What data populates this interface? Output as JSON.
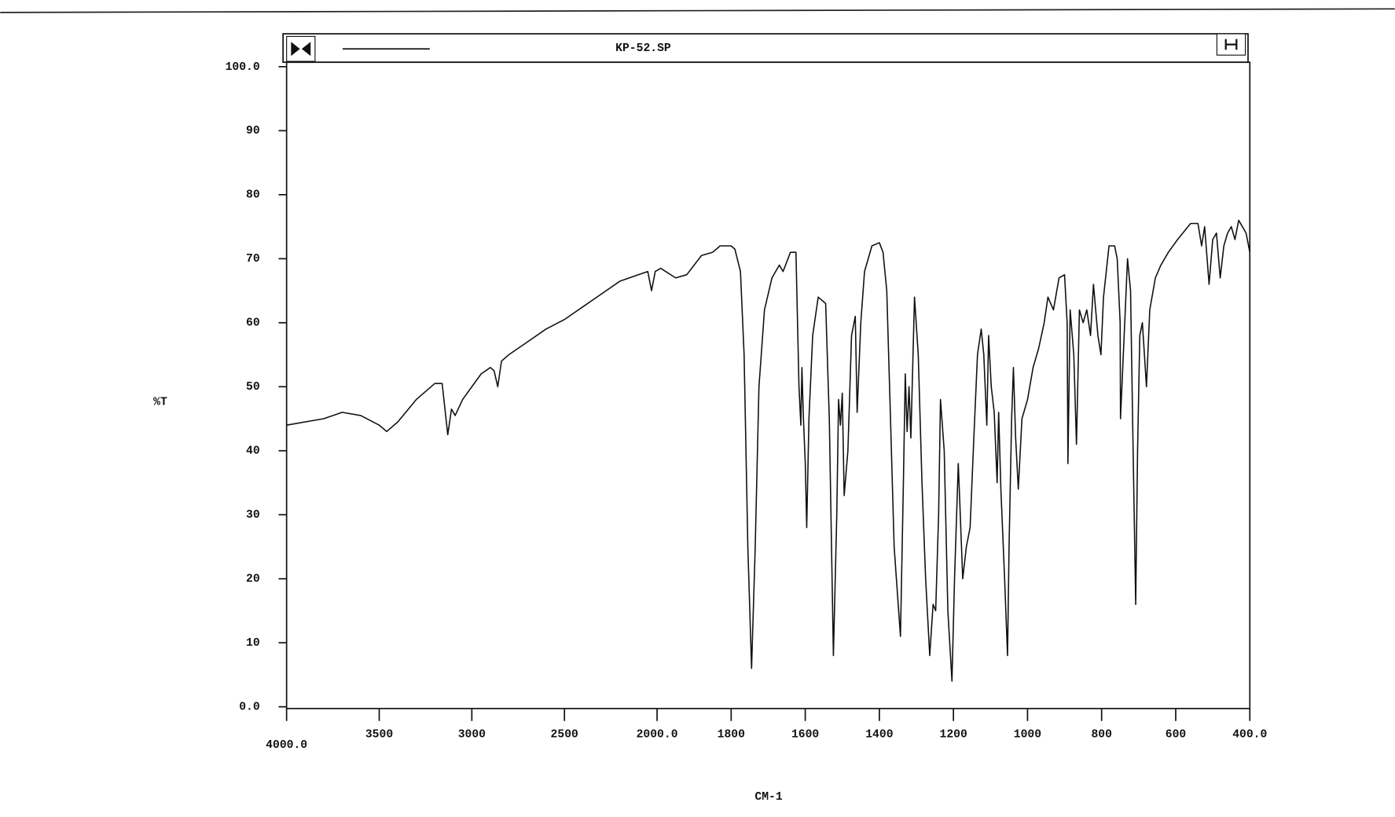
{
  "chart_data": {
    "type": "line",
    "title": "KP-52.SP",
    "xlabel": "CM-1",
    "ylabel": "%T",
    "xlim": [
      4000,
      400
    ],
    "x_scale_change": {
      "at": 2000,
      "factor": 2
    },
    "xticks": [
      {
        "value": 4000,
        "label": "4000.0"
      },
      3500,
      3000,
      2500,
      {
        "value": 2000,
        "label": "2000.0"
      },
      1800,
      1600,
      1400,
      1200,
      1000,
      800,
      600,
      {
        "value": 400,
        "label": "400.0"
      }
    ],
    "ylim": [
      0,
      100
    ],
    "yticks": [
      {
        "value": 0,
        "label": "0.0"
      },
      10,
      20,
      30,
      40,
      50,
      60,
      70,
      80,
      90,
      {
        "value": 100,
        "label": "100.0"
      }
    ],
    "series": [
      {
        "color": "#111111",
        "x": [
          4000,
          3800,
          3700,
          3600,
          3500,
          3460,
          3400,
          3300,
          3200,
          3160,
          3130,
          3110,
          3090,
          3050,
          3000,
          2950,
          2900,
          2880,
          2860,
          2840,
          2800,
          2700,
          2600,
          2500,
          2400,
          2300,
          2200,
          2100,
          2050,
          2030,
          2010,
          1990,
          1950,
          1920,
          1900,
          1880,
          1850,
          1830,
          1800,
          1790,
          1775,
          1765,
          1755,
          1745,
          1735,
          1725,
          1710,
          1690,
          1670,
          1660,
          1640,
          1625,
          1617,
          1612,
          1609,
          1605,
          1600,
          1596,
          1590,
          1580,
          1565,
          1545,
          1535,
          1524,
          1515,
          1510,
          1505,
          1500,
          1495,
          1485,
          1475,
          1465,
          1460,
          1450,
          1440,
          1420,
          1400,
          1390,
          1380,
          1370,
          1360,
          1343,
          1335,
          1330,
          1325,
          1320,
          1315,
          1305,
          1295,
          1285,
          1275,
          1264,
          1255,
          1248,
          1240,
          1235,
          1225,
          1215,
          1204,
          1197,
          1187,
          1183,
          1175,
          1165,
          1155,
          1145,
          1135,
          1125,
          1118,
          1110,
          1105,
          1098,
          1090,
          1082,
          1078,
          1072,
          1062,
          1054,
          1050,
          1043,
          1038,
          1032,
          1025,
          1015,
          1000,
          985,
          970,
          955,
          945,
          930,
          915,
          900,
          893,
          891,
          885,
          875,
          868,
          860,
          850,
          840,
          830,
          822,
          810,
          802,
          795,
          780,
          765,
          758,
          750,
          749,
          736,
          730,
          722,
          715,
          708,
          703,
          697,
          690,
          679,
          670,
          655,
          640,
          620,
          595,
          560,
          540,
          530,
          522,
          510,
          500,
          490,
          480,
          470,
          460,
          450,
          440,
          430,
          420,
          410,
          400
        ],
        "values": [
          44,
          45,
          46,
          45.5,
          44,
          43,
          44.5,
          48,
          50.5,
          50.5,
          42.5,
          46.5,
          45.5,
          48,
          50,
          52,
          53,
          52.5,
          50,
          54,
          55,
          57,
          59,
          60.5,
          62.5,
          64.5,
          66.5,
          67.5,
          68,
          65,
          68,
          68.5,
          67,
          67.5,
          69,
          70.5,
          71,
          72,
          72,
          71.5,
          68,
          55,
          25,
          6,
          25,
          50,
          62,
          67,
          69,
          68,
          71,
          71,
          50,
          44,
          53,
          45,
          38,
          28,
          45,
          58,
          64,
          63,
          45,
          8,
          30,
          48,
          44,
          49,
          33,
          40,
          58,
          61,
          46,
          60,
          68,
          72,
          72.5,
          71,
          65,
          45,
          25,
          11,
          35,
          52,
          43,
          50,
          42,
          64,
          55,
          35,
          20,
          8,
          16,
          15,
          30,
          48,
          40,
          15,
          4,
          20,
          38,
          32,
          20,
          25,
          28,
          42,
          55,
          59,
          55,
          44,
          58,
          50,
          46,
          35,
          46,
          34,
          20,
          8,
          25,
          45,
          53,
          42,
          34,
          45,
          48,
          53,
          56,
          60,
          64,
          62,
          67,
          67.5,
          60,
          38,
          62,
          55,
          41,
          62,
          60,
          62,
          58,
          66,
          58,
          55,
          64,
          72,
          72,
          70,
          60,
          45,
          62,
          70,
          65,
          40,
          16,
          40,
          58,
          60,
          50,
          62,
          67,
          69,
          71,
          73,
          75.5,
          75.5,
          72,
          75,
          66,
          73,
          74,
          67,
          72,
          74,
          75,
          73,
          76,
          75,
          74,
          71
        ]
      }
    ]
  }
}
